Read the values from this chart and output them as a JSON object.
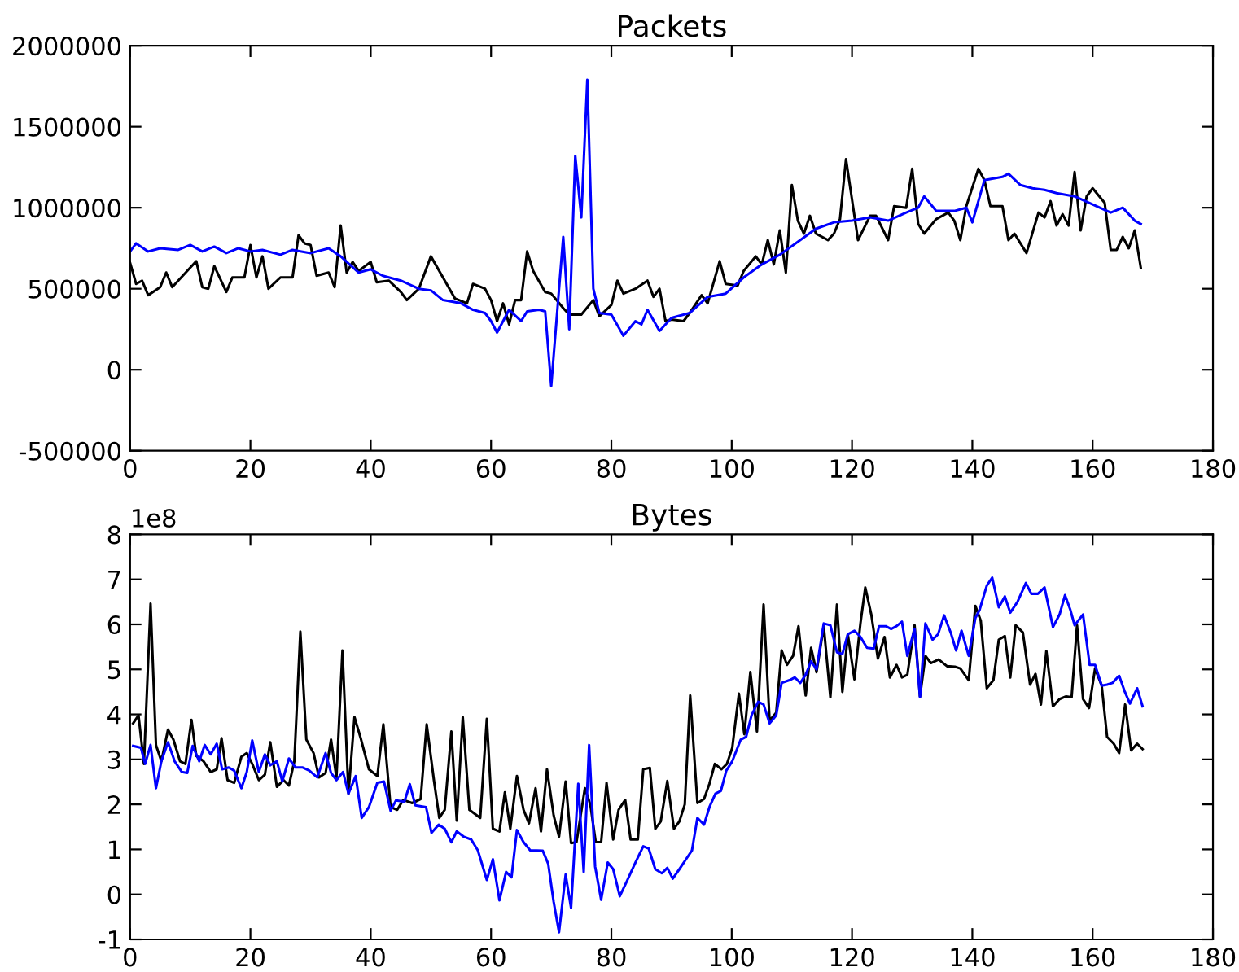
{
  "chart_data": [
    {
      "type": "line",
      "title": "Packets",
      "xlim": [
        0,
        180
      ],
      "xticks": [
        0,
        20,
        40,
        60,
        80,
        100,
        120,
        140,
        160,
        180
      ],
      "ylim": [
        -500000,
        2000000
      ],
      "yticks": [
        -500000,
        0,
        500000,
        1000000,
        1500000,
        2000000
      ],
      "series": [
        {
          "color": "#000000",
          "x": [
            0,
            1,
            2,
            3,
            5,
            6,
            7,
            8,
            10,
            11,
            12,
            13,
            14,
            16,
            17,
            19,
            20,
            21,
            22,
            23,
            25,
            27,
            28,
            29,
            30,
            31,
            33,
            34,
            35,
            36,
            37,
            38,
            40,
            41,
            43,
            45,
            46,
            48,
            50,
            52,
            54,
            56,
            57,
            59,
            60,
            61,
            62,
            63,
            64,
            65,
            66,
            67,
            69,
            70,
            72,
            73,
            75,
            77,
            78,
            80,
            81,
            82,
            84,
            86,
            87,
            88,
            89,
            90,
            92,
            93,
            95,
            96,
            98,
            99,
            101,
            102,
            104,
            105,
            106,
            107,
            108,
            109,
            110,
            111,
            112,
            113,
            114,
            116,
            117,
            118,
            119,
            121,
            123,
            124,
            126,
            127,
            129,
            130,
            131,
            132,
            134,
            136,
            137,
            138,
            139,
            141,
            142,
            143,
            145,
            146,
            147,
            149,
            151,
            152,
            153,
            154,
            155,
            156,
            157,
            158,
            159,
            160,
            162,
            163,
            164,
            165,
            166,
            167,
            168
          ],
          "values": [
            660000,
            530000,
            550000,
            460000,
            510000,
            600000,
            510000,
            550000,
            630000,
            670000,
            510000,
            500000,
            640000,
            480000,
            570000,
            570000,
            770000,
            570000,
            700000,
            500000,
            570000,
            570000,
            830000,
            780000,
            770000,
            580000,
            600000,
            510000,
            890000,
            600000,
            665000,
            610000,
            665000,
            540000,
            550000,
            480000,
            430000,
            500000,
            700000,
            570000,
            440000,
            410000,
            530000,
            500000,
            430000,
            300000,
            410000,
            280000,
            430000,
            430000,
            730000,
            610000,
            480000,
            470000,
            380000,
            340000,
            340000,
            430000,
            330000,
            400000,
            550000,
            470000,
            500000,
            550000,
            450000,
            500000,
            300000,
            310000,
            300000,
            350000,
            460000,
            410000,
            670000,
            530000,
            520000,
            610000,
            700000,
            650000,
            800000,
            650000,
            860000,
            600000,
            1140000,
            920000,
            840000,
            950000,
            840000,
            800000,
            840000,
            930000,
            1300000,
            800000,
            950000,
            950000,
            800000,
            1010000,
            1000000,
            1240000,
            900000,
            840000,
            930000,
            970000,
            920000,
            800000,
            1010000,
            1240000,
            1170000,
            1010000,
            1010000,
            800000,
            840000,
            720000,
            970000,
            940000,
            1040000,
            890000,
            960000,
            890000,
            1220000,
            860000,
            1070000,
            1120000,
            1030000,
            740000,
            740000,
            820000,
            750000,
            860000,
            630000
          ]
        },
        {
          "color": "#0000ff",
          "x": [
            0,
            1,
            3,
            5,
            8,
            10,
            12,
            14,
            16,
            18,
            20,
            22,
            25,
            27,
            30,
            33,
            35,
            38,
            40,
            42,
            45,
            48,
            50,
            52,
            55,
            57,
            59,
            60,
            61,
            63,
            65,
            66,
            68,
            69,
            70,
            72,
            73,
            74,
            75,
            76,
            77,
            78,
            80,
            82,
            84,
            85,
            86,
            88,
            90,
            93,
            96,
            99,
            102,
            105,
            108,
            111,
            114,
            117,
            120,
            123,
            126,
            129,
            131,
            132,
            134,
            137,
            139,
            140,
            142,
            145,
            146,
            148,
            150,
            152,
            154,
            157,
            160,
            163,
            165,
            167,
            168
          ],
          "values": [
            730000,
            780000,
            730000,
            750000,
            740000,
            770000,
            730000,
            760000,
            720000,
            750000,
            730000,
            740000,
            710000,
            740000,
            720000,
            750000,
            700000,
            600000,
            620000,
            580000,
            550000,
            500000,
            490000,
            430000,
            410000,
            370000,
            350000,
            300000,
            230000,
            370000,
            300000,
            360000,
            370000,
            360000,
            -100000,
            820000,
            250000,
            1320000,
            940000,
            1790000,
            500000,
            350000,
            340000,
            210000,
            300000,
            280000,
            370000,
            240000,
            320000,
            350000,
            450000,
            470000,
            570000,
            650000,
            710000,
            790000,
            870000,
            910000,
            920000,
            940000,
            920000,
            970000,
            1000000,
            1070000,
            980000,
            980000,
            1000000,
            910000,
            1170000,
            1190000,
            1210000,
            1140000,
            1120000,
            1110000,
            1090000,
            1070000,
            1020000,
            970000,
            1000000,
            920000,
            900000
          ]
        }
      ]
    },
    {
      "type": "line",
      "title": "Bytes",
      "xlim": [
        0,
        180
      ],
      "xticks": [
        0,
        20,
        40,
        60,
        80,
        100,
        120,
        140,
        160,
        180
      ],
      "ylim": [
        -1,
        8
      ],
      "yticks": [
        -1,
        0,
        1,
        2,
        3,
        4,
        5,
        6,
        7,
        8
      ],
      "annotations": [
        "1e8"
      ],
      "series": [
        {
          "color": "#000000",
          "x": [
            0.5,
            1.4,
            2.3,
            3.4,
            4.3,
            5.2,
            6.3,
            7.2,
            8.3,
            9.2,
            10.2,
            11.0,
            12.2,
            13.4,
            14.4,
            15.2,
            16.2,
            17.3,
            18.5,
            19.4,
            20.3,
            21.4,
            22.4,
            23.3,
            24.4,
            25.5,
            26.4,
            27.3,
            28.3,
            29.3,
            30.5,
            31.4,
            32.5,
            33.4,
            34.3,
            35.3,
            36.3,
            37.3,
            38.4,
            39.7,
            41.1,
            42.1,
            43.3,
            44.4,
            45.4,
            46.9,
            48.3,
            49.3,
            50.5,
            51.4,
            52.3,
            53.4,
            54.3,
            55.3,
            56.4,
            58.2,
            59.3,
            60.3,
            61.4,
            62.3,
            63.2,
            64.3,
            65.4,
            66.3,
            67.4,
            68.3,
            69.3,
            70.4,
            71.3,
            72.4,
            73.3,
            74.2,
            75.6,
            76.5,
            77.4,
            78.3,
            79.2,
            80.3,
            81.2,
            82.3,
            83.2,
            84.4,
            85.3,
            86.4,
            87.3,
            88.2,
            89.3,
            90.4,
            91.3,
            92.2,
            93.1,
            94.3,
            95.4,
            96.3,
            97.2,
            98.3,
            99.2,
            100.1,
            101.2,
            102.1,
            103.1,
            104.2,
            105.3,
            106.3,
            107.4,
            108.3,
            109.2,
            110.2,
            111.1,
            112.3,
            113.2,
            114.1,
            115.3,
            116.4,
            117.5,
            118.4,
            119.3,
            120.4,
            121.4,
            122.2,
            123.2,
            124.3,
            125.4,
            126.3,
            127.4,
            128.3,
            129.2,
            130.4,
            131.3,
            132.2,
            133.1,
            134.4,
            135.8,
            137.1,
            138.0,
            139.4,
            140.5,
            141.4,
            142.4,
            143.5,
            144.4,
            145.4,
            146.3,
            147.2,
            148.4,
            149.6,
            150.5,
            151.4,
            152.3,
            153.4,
            154.5,
            155.6,
            156.5,
            157.4,
            158.4,
            159.4,
            160.4,
            161.5,
            162.4,
            163.5,
            164.4,
            165.4,
            166.4,
            167.4,
            168.3
          ],
          "values": [
            3.8,
            3.98,
            2.9,
            6.46,
            3.32,
            2.96,
            3.66,
            3.44,
            2.96,
            2.9,
            3.88,
            3.08,
            2.96,
            2.72,
            2.78,
            3.47,
            2.54,
            2.48,
            3.06,
            3.14,
            2.9,
            2.54,
            2.66,
            3.38,
            2.39,
            2.54,
            2.42,
            2.96,
            5.84,
            3.44,
            3.14,
            2.6,
            2.7,
            3.44,
            2.6,
            5.42,
            2.24,
            3.94,
            3.44,
            2.78,
            2.63,
            3.78,
            1.94,
            1.88,
            2.1,
            2.03,
            2.12,
            3.78,
            2.54,
            1.7,
            1.88,
            3.62,
            1.64,
            3.94,
            1.88,
            1.7,
            3.9,
            1.46,
            1.4,
            2.27,
            1.46,
            2.63,
            1.88,
            1.58,
            2.36,
            1.4,
            2.78,
            1.76,
            1.28,
            2.51,
            1.14,
            1.16,
            2.36,
            2.0,
            1.16,
            1.16,
            2.48,
            1.22,
            1.88,
            2.1,
            1.22,
            1.22,
            2.78,
            2.81,
            1.46,
            1.62,
            2.52,
            1.46,
            1.62,
            2.0,
            4.42,
            2.03,
            2.12,
            2.46,
            2.9,
            2.78,
            2.9,
            3.26,
            4.46,
            3.56,
            4.94,
            3.62,
            6.44,
            3.86,
            4.04,
            5.42,
            5.1,
            5.3,
            5.96,
            4.42,
            5.48,
            4.94,
            5.96,
            4.38,
            6.44,
            4.5,
            5.78,
            4.78,
            6.02,
            6.82,
            6.22,
            5.24,
            5.72,
            4.82,
            5.1,
            4.82,
            4.88,
            5.98,
            4.4,
            5.3,
            5.14,
            5.22,
            5.07,
            5.06,
            5.02,
            4.76,
            6.41,
            6.08,
            4.58,
            4.76,
            5.66,
            5.74,
            4.82,
            5.98,
            5.82,
            4.66,
            4.9,
            4.22,
            5.41,
            4.18,
            4.34,
            4.4,
            4.38,
            5.98,
            4.34,
            4.14,
            5.02,
            4.64,
            3.5,
            3.35,
            3.14,
            4.22,
            3.2,
            3.35,
            3.23
          ]
        },
        {
          "color": "#0000ff",
          "x": [
            0.5,
            1.8,
            2.5,
            3.4,
            4.3,
            5.2,
            6.3,
            7.4,
            8.6,
            9.5,
            10.4,
            11.5,
            12.4,
            13.4,
            14.4,
            15.3,
            16.4,
            17.3,
            18.5,
            19.4,
            20.3,
            21.4,
            22.4,
            23.3,
            24.4,
            25.3,
            26.4,
            27.5,
            28.7,
            29.8,
            31.1,
            32.5,
            33.4,
            34.3,
            35.4,
            36.3,
            37.5,
            38.5,
            39.7,
            41.1,
            42.2,
            43.3,
            44.2,
            45.6,
            46.5,
            47.4,
            49.2,
            50.1,
            51.3,
            52.3,
            53.4,
            54.3,
            55.5,
            56.7,
            57.8,
            59.3,
            60.3,
            61.4,
            62.5,
            63.4,
            64.3,
            65.4,
            66.5,
            68.6,
            69.5,
            70.4,
            71.3,
            72.4,
            73.3,
            74.5,
            75.4,
            76.3,
            77.3,
            78.3,
            79.4,
            80.3,
            81.4,
            82.6,
            83.9,
            85.3,
            86.2,
            87.3,
            88.4,
            89.3,
            90.2,
            91.3,
            92.5,
            93.4,
            94.3,
            95.4,
            96.3,
            97.3,
            98.2,
            99.1,
            100.1,
            101.5,
            102.4,
            103.3,
            104.4,
            105.3,
            106.3,
            107.4,
            108.3,
            109.6,
            110.5,
            111.4,
            112.3,
            113.2,
            114.1,
            115.3,
            116.4,
            117.5,
            118.4,
            119.3,
            120.4,
            121.3,
            122.5,
            123.6,
            124.5,
            125.6,
            126.5,
            127.4,
            128.3,
            129.2,
            130.4,
            131.3,
            132.2,
            133.4,
            134.3,
            135.3,
            136.4,
            137.3,
            138.2,
            139.4,
            140.5,
            141.2,
            142.4,
            143.3,
            144.4,
            145.4,
            146.3,
            147.5,
            148.9,
            149.8,
            150.9,
            152.0,
            153.4,
            154.5,
            155.4,
            156.3,
            157.0,
            158.4,
            159.5,
            160.4,
            161.5,
            162.4,
            163.3,
            164.4,
            165.3,
            166.2,
            167.4,
            168.3
          ],
          "values": [
            3.3,
            3.26,
            2.9,
            3.32,
            2.36,
            2.96,
            3.38,
            2.96,
            2.72,
            2.7,
            3.3,
            2.96,
            3.32,
            3.11,
            3.35,
            2.78,
            2.82,
            2.75,
            2.36,
            2.72,
            3.42,
            2.72,
            3.11,
            2.87,
            2.96,
            2.51,
            3.02,
            2.82,
            2.82,
            2.75,
            2.6,
            3.14,
            2.7,
            2.54,
            2.72,
            2.24,
            2.63,
            1.7,
            1.94,
            2.48,
            2.51,
            1.86,
            2.09,
            2.06,
            2.45,
            1.98,
            1.94,
            1.37,
            1.55,
            1.46,
            1.16,
            1.4,
            1.28,
            1.22,
            0.98,
            0.32,
            0.78,
            -0.13,
            0.5,
            0.38,
            1.43,
            1.16,
            0.98,
            0.97,
            0.68,
            -0.16,
            -0.84,
            0.44,
            -0.3,
            2.46,
            0.5,
            3.32,
            0.62,
            -0.12,
            0.71,
            0.56,
            -0.04,
            0.3,
            0.68,
            1.07,
            1.02,
            0.56,
            0.47,
            0.59,
            0.35,
            0.56,
            0.8,
            0.98,
            1.7,
            1.55,
            1.94,
            2.24,
            2.3,
            2.75,
            2.96,
            3.44,
            3.5,
            3.98,
            4.28,
            4.22,
            3.8,
            3.98,
            4.7,
            4.76,
            4.82,
            4.7,
            4.88,
            5.18,
            5.0,
            6.02,
            5.98,
            5.38,
            5.34,
            5.78,
            5.86,
            5.74,
            5.48,
            5.46,
            5.96,
            5.96,
            5.9,
            5.96,
            6.06,
            5.3,
            5.9,
            4.38,
            6.02,
            5.66,
            5.78,
            6.2,
            5.82,
            5.42,
            5.86,
            5.3,
            6.14,
            6.32,
            6.86,
            7.04,
            6.38,
            6.62,
            6.26,
            6.5,
            6.92,
            6.68,
            6.68,
            6.82,
            5.94,
            6.22,
            6.65,
            6.32,
            5.98,
            6.22,
            5.1,
            5.1,
            4.64,
            4.66,
            4.7,
            4.86,
            4.52,
            4.24,
            4.58,
            4.18
          ]
        }
      ]
    }
  ]
}
